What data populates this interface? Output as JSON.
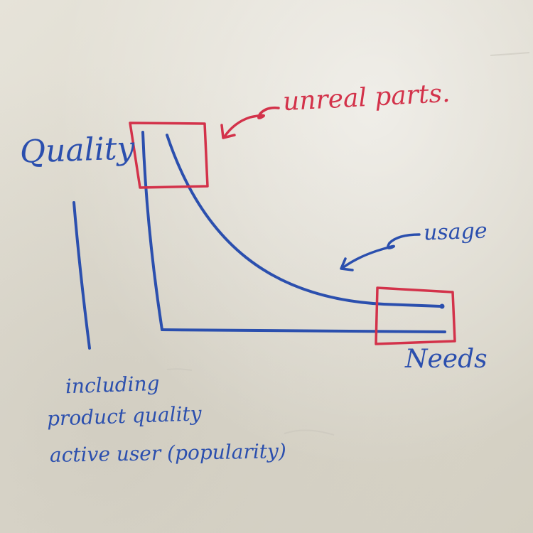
{
  "diagram": {
    "y_axis_label": "Quality",
    "x_axis_label": "Needs",
    "curve_label": "usage",
    "highlight_label": "unreal parts.",
    "notes": [
      "including",
      "product quality",
      "active user (popularity)"
    ]
  },
  "colors": {
    "blue_marker": "#2b4fae",
    "red_marker": "#d3324a"
  }
}
